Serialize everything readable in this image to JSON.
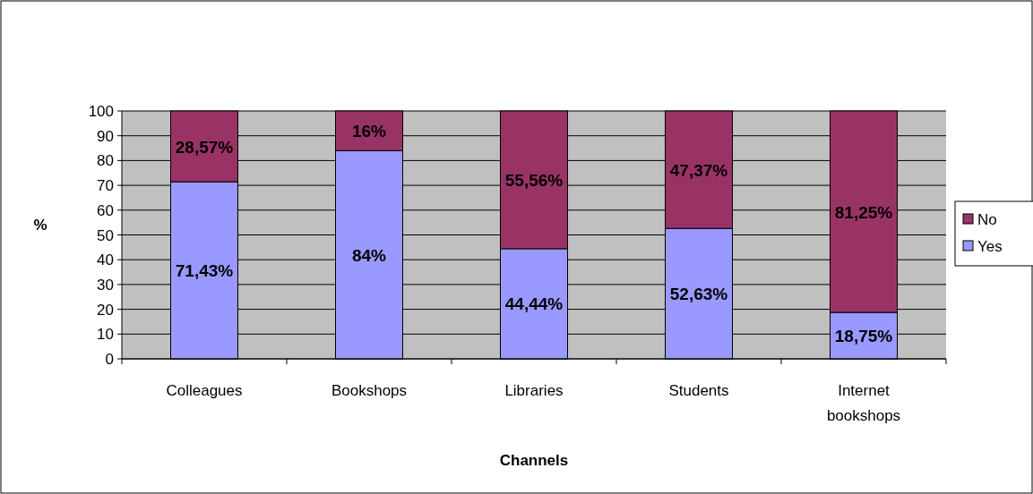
{
  "chart_data": {
    "type": "bar",
    "stacked": true,
    "xlabel": "Channels",
    "ylabel": "%",
    "categories": [
      "Colleagues",
      "Bookshops",
      "Libraries",
      "Students",
      "Internet bookshops"
    ],
    "series": [
      {
        "name": "Yes",
        "color": "#9999ff",
        "values": [
          71.43,
          84,
          44.44,
          52.63,
          18.75
        ],
        "value_labels": [
          "71,43%",
          "84%",
          "44,44%",
          "52,63%",
          "18,75%"
        ]
      },
      {
        "name": "No",
        "color": "#993366",
        "values": [
          28.57,
          16,
          55.56,
          47.37,
          81.25
        ],
        "value_labels": [
          "28,57%",
          "16%",
          "55,56%",
          "47,37%",
          "81,25%"
        ]
      }
    ],
    "ylim": [
      0,
      100
    ],
    "yticks": [
      0,
      10,
      20,
      30,
      40,
      50,
      60,
      70,
      80,
      90,
      100
    ],
    "grid": "y",
    "legend": "right"
  }
}
